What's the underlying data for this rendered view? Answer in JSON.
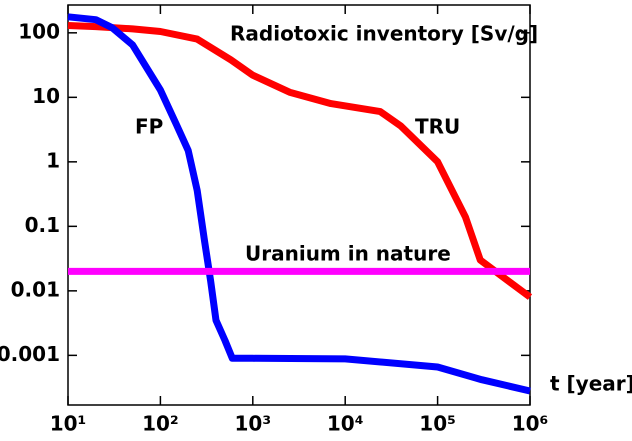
{
  "chart_data": {
    "type": "line",
    "annotations": [
      "Radiotoxic inventory [Sv/g]",
      "FP",
      "TRU",
      "Uranium in nature",
      "t [year]"
    ],
    "log_x": true,
    "log_y": true,
    "xlim": [
      10,
      1000000
    ],
    "ylim": [
      0.00017,
      270
    ],
    "xticks": [
      {
        "value": 10,
        "label": "10¹"
      },
      {
        "value": 100,
        "label": "10²"
      },
      {
        "value": 1000,
        "label": "10³"
      },
      {
        "value": 10000,
        "label": "10⁴"
      },
      {
        "value": 100000,
        "label": "10⁵"
      },
      {
        "value": 1000000,
        "label": "10⁶"
      }
    ],
    "yticks": [
      100,
      10,
      1,
      0.1,
      0.01,
      0.001
    ],
    "series": [
      {
        "color": "#ff0000",
        "x": [
          10,
          20,
          50,
          100,
          250,
          580,
          1000,
          2500,
          7000,
          24000,
          40000,
          100000,
          200000,
          290000,
          1000000
        ],
        "values": [
          130,
          125,
          115,
          105,
          80,
          38,
          22,
          12,
          8,
          6,
          3.6,
          1,
          0.14,
          0.03,
          0.008
        ]
      },
      {
        "color": "#0000ff",
        "x": [
          10,
          20,
          30,
          50,
          100,
          150,
          200,
          250,
          300,
          350,
          400,
          500,
          600,
          1000,
          10000,
          100000,
          300000,
          1000000
        ],
        "values": [
          177,
          160,
          120,
          65,
          13,
          3.7,
          1.5,
          0.36,
          0.06,
          0.014,
          0.0035,
          0.0017,
          0.0009,
          0.0009,
          0.00088,
          0.00066,
          0.00042,
          0.00028
        ]
      },
      {
        "color": "#ff00ff",
        "x": [
          10,
          1000000
        ],
        "values": [
          0.02,
          0.02
        ]
      }
    ]
  }
}
